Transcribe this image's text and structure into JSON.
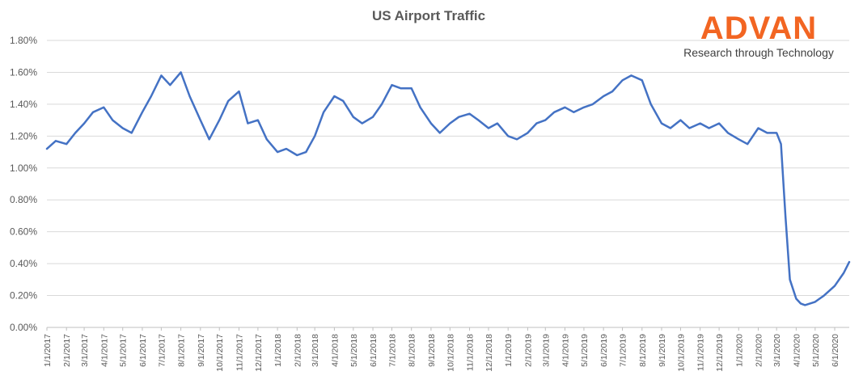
{
  "chart_data": {
    "type": "line",
    "title": "US Airport Traffic",
    "xlabel": "",
    "ylabel": "",
    "ylim": [
      0,
      0.018
    ],
    "yticks": [
      "0.00%",
      "0.20%",
      "0.40%",
      "0.60%",
      "0.80%",
      "1.00%",
      "1.20%",
      "1.40%",
      "1.60%",
      "1.80%"
    ],
    "ytick_values": [
      0,
      0.002,
      0.004,
      0.006,
      0.008,
      0.01,
      0.012,
      0.014,
      0.016,
      0.018
    ],
    "xlim": [
      "1/1/2017",
      "6/24/2020"
    ],
    "xticks": [
      "1/1/2017",
      "2/1/2017",
      "3/1/2017",
      "4/1/2017",
      "5/1/2017",
      "6/1/2017",
      "7/1/2017",
      "8/1/2017",
      "9/1/2017",
      "10/1/2017",
      "11/1/2017",
      "12/1/2017",
      "1/1/2018",
      "2/1/2018",
      "3/1/2018",
      "4/1/2018",
      "5/1/2018",
      "6/1/2018",
      "7/1/2018",
      "8/1/2018",
      "9/1/2018",
      "10/1/2018",
      "11/1/2018",
      "12/1/2018",
      "1/1/2019",
      "2/1/2019",
      "3/1/2019",
      "4/1/2019",
      "5/1/2019",
      "6/1/2019",
      "7/1/2019",
      "8/1/2019",
      "9/1/2019",
      "10/1/2019",
      "11/1/2019",
      "12/1/2019",
      "1/1/2020",
      "2/1/2020",
      "3/1/2020",
      "4/1/2020",
      "5/1/2020",
      "6/1/2020"
    ],
    "grid": true,
    "legend": "none",
    "color": "#4472c4",
    "series": [
      {
        "x": [
          "1/1/2017",
          "1/15/2017",
          "2/1/2017",
          "2/15/2017",
          "3/1/2017",
          "3/15/2017",
          "4/1/2017",
          "4/15/2017",
          "5/1/2017",
          "5/15/2017",
          "6/1/2017",
          "6/15/2017",
          "7/1/2017",
          "7/15/2017",
          "8/1/2017",
          "8/15/2017",
          "9/1/2017",
          "9/15/2017",
          "10/1/2017",
          "10/15/2017",
          "11/1/2017",
          "11/15/2017",
          "12/1/2017",
          "12/15/2017",
          "1/1/2018",
          "1/15/2018",
          "2/1/2018",
          "2/15/2018",
          "3/1/2018",
          "3/15/2018",
          "4/1/2018",
          "4/15/2018",
          "5/1/2018",
          "5/15/2018",
          "6/1/2018",
          "6/15/2018",
          "7/1/2018",
          "7/15/2018",
          "8/1/2018",
          "8/15/2018",
          "9/1/2018",
          "9/15/2018",
          "10/1/2018",
          "10/15/2018",
          "11/1/2018",
          "11/15/2018",
          "12/1/2018",
          "12/15/2018",
          "1/1/2019",
          "1/15/2019",
          "2/1/2019",
          "2/15/2019",
          "3/1/2019",
          "3/15/2019",
          "4/1/2019",
          "4/15/2019",
          "5/1/2019",
          "5/15/2019",
          "6/1/2019",
          "6/15/2019",
          "7/1/2019",
          "7/15/2019",
          "8/1/2019",
          "8/15/2019",
          "9/1/2019",
          "9/15/2019",
          "10/1/2019",
          "10/15/2019",
          "11/1/2019",
          "11/15/2019",
          "12/1/2019",
          "12/15/2019",
          "1/1/2020",
          "1/15/2020",
          "2/1/2020",
          "2/15/2020",
          "3/1/2020",
          "3/8/2020",
          "3/15/2020",
          "3/22/2020",
          "4/1/2020",
          "4/8/2020",
          "4/15/2020",
          "5/1/2020",
          "5/15/2020",
          "6/1/2020",
          "6/15/2020",
          "6/24/2020"
        ],
        "y": [
          0.0112,
          0.0117,
          0.0115,
          0.0122,
          0.0128,
          0.0135,
          0.0138,
          0.013,
          0.0125,
          0.0122,
          0.0135,
          0.0145,
          0.0158,
          0.0152,
          0.016,
          0.0145,
          0.013,
          0.0118,
          0.013,
          0.0142,
          0.0148,
          0.0128,
          0.013,
          0.0118,
          0.011,
          0.0112,
          0.0108,
          0.011,
          0.012,
          0.0135,
          0.0145,
          0.0142,
          0.0132,
          0.0128,
          0.0132,
          0.014,
          0.0152,
          0.015,
          0.015,
          0.0138,
          0.0128,
          0.0122,
          0.0128,
          0.0132,
          0.0134,
          0.013,
          0.0125,
          0.0128,
          0.012,
          0.0118,
          0.0122,
          0.0128,
          0.013,
          0.0135,
          0.0138,
          0.0135,
          0.0138,
          0.014,
          0.0145,
          0.0148,
          0.0155,
          0.0158,
          0.0155,
          0.014,
          0.0128,
          0.0125,
          0.013,
          0.0125,
          0.0128,
          0.0125,
          0.0128,
          0.0122,
          0.0118,
          0.0115,
          0.0125,
          0.0122,
          0.0122,
          0.0115,
          0.007,
          0.003,
          0.0018,
          0.0015,
          0.0014,
          0.0016,
          0.002,
          0.0026,
          0.0034,
          0.0041
        ]
      }
    ]
  },
  "logo": {
    "word": "ADVAN",
    "tagline": "Research through Technology",
    "color": "#f26522"
  }
}
